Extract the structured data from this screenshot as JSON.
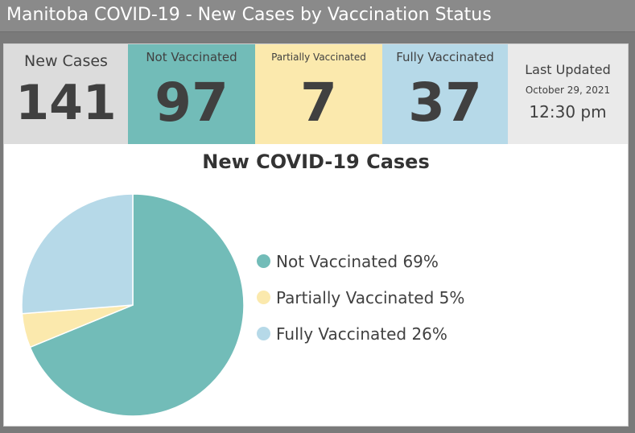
{
  "header": {
    "title": "Manitoba COVID-19 - New Cases by Vaccination Status"
  },
  "stats": {
    "new_cases": {
      "label": "New Cases",
      "value": "141"
    },
    "not_vaccinated": {
      "label": "Not Vaccinated",
      "value": "97"
    },
    "partially_vaccinated": {
      "label": "Partially Vaccinated",
      "value": "7"
    },
    "fully_vaccinated": {
      "label": "Fully Vaccinated",
      "value": "37"
    },
    "last_updated": {
      "label": "Last Updated",
      "date": "October 29, 2021",
      "time": "12:30 pm"
    }
  },
  "colors": {
    "not_vaccinated": "#72bcb8",
    "partially_vaccinated": "#fbe9ad",
    "fully_vaccinated": "#b6d9e8"
  },
  "chart_data": {
    "type": "pie",
    "title": "New COVID-19 Cases",
    "legend_position": "right",
    "slices": [
      {
        "label": "Not Vaccinated 69%",
        "value": 97,
        "percent": 69,
        "color": "#72bcb8"
      },
      {
        "label": "Partially Vaccinated 5%",
        "value": 7,
        "percent": 5,
        "color": "#fbe9ad"
      },
      {
        "label": "Fully Vaccinated 26%",
        "value": 37,
        "percent": 26,
        "color": "#b6d9e8"
      }
    ]
  }
}
